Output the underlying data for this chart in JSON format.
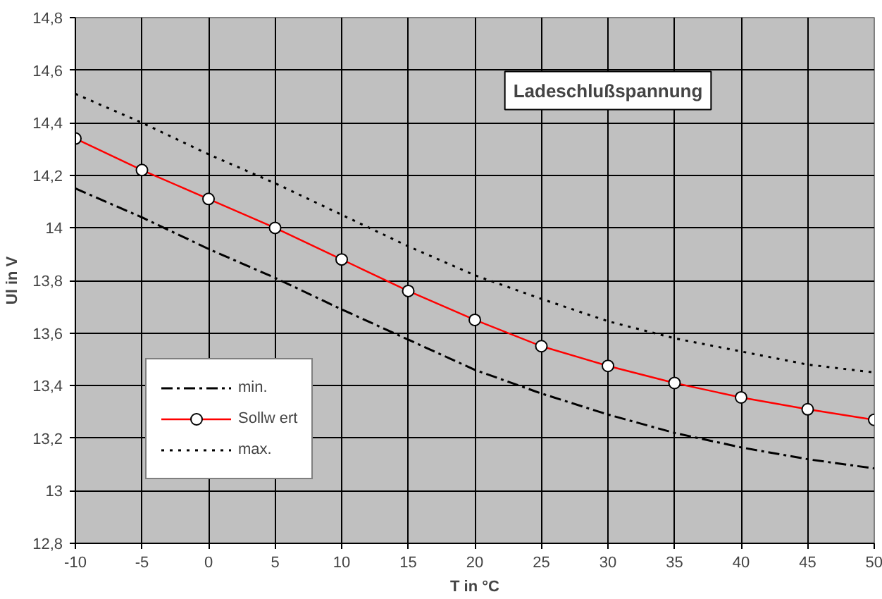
{
  "chart_data": {
    "type": "line",
    "title": "Ladeschlußspannung",
    "xlabel": "T in °C",
    "ylabel": "Ul in V",
    "x": [
      -10,
      -5,
      0,
      5,
      10,
      15,
      20,
      25,
      30,
      35,
      40,
      45,
      50
    ],
    "series": [
      {
        "name": "min.",
        "color": "#000000",
        "line_style": "dashdot",
        "marker": "none",
        "values": [
          14.15,
          14.04,
          13.92,
          13.81,
          13.69,
          13.575,
          13.46,
          13.37,
          13.29,
          13.22,
          13.165,
          13.12,
          13.085
        ]
      },
      {
        "name": "Sollw ert",
        "color": "#ff0000",
        "line_style": "solid",
        "marker": "circle",
        "values": [
          14.34,
          14.22,
          14.11,
          14.0,
          13.88,
          13.76,
          13.65,
          13.55,
          13.475,
          13.41,
          13.355,
          13.31,
          13.27
        ]
      },
      {
        "name": "max.",
        "color": "#000000",
        "line_style": "dotted",
        "marker": "none",
        "values": [
          14.51,
          14.4,
          14.28,
          14.17,
          14.05,
          13.93,
          13.82,
          13.73,
          13.645,
          13.58,
          13.53,
          13.48,
          13.45
        ]
      }
    ],
    "xlim": [
      -10,
      50
    ],
    "xticks": [
      -10,
      -5,
      0,
      5,
      10,
      15,
      20,
      25,
      30,
      35,
      40,
      45,
      50
    ],
    "ylim": [
      12.8,
      14.8
    ],
    "yticks": [
      {
        "value": 12.8,
        "label": "12,8"
      },
      {
        "value": 13,
        "label": "13"
      },
      {
        "value": 13.2,
        "label": "13,2"
      },
      {
        "value": 13.4,
        "label": "13,4"
      },
      {
        "value": 13.6,
        "label": "13,6"
      },
      {
        "value": 13.8,
        "label": "13,8"
      },
      {
        "value": 14,
        "label": "14"
      },
      {
        "value": 14.2,
        "label": "14,2"
      },
      {
        "value": 14.4,
        "label": "14,4"
      },
      {
        "value": 14.6,
        "label": "14,6"
      },
      {
        "value": 14.8,
        "label": "14,8"
      }
    ],
    "grid": true,
    "legend": "bottom left"
  }
}
